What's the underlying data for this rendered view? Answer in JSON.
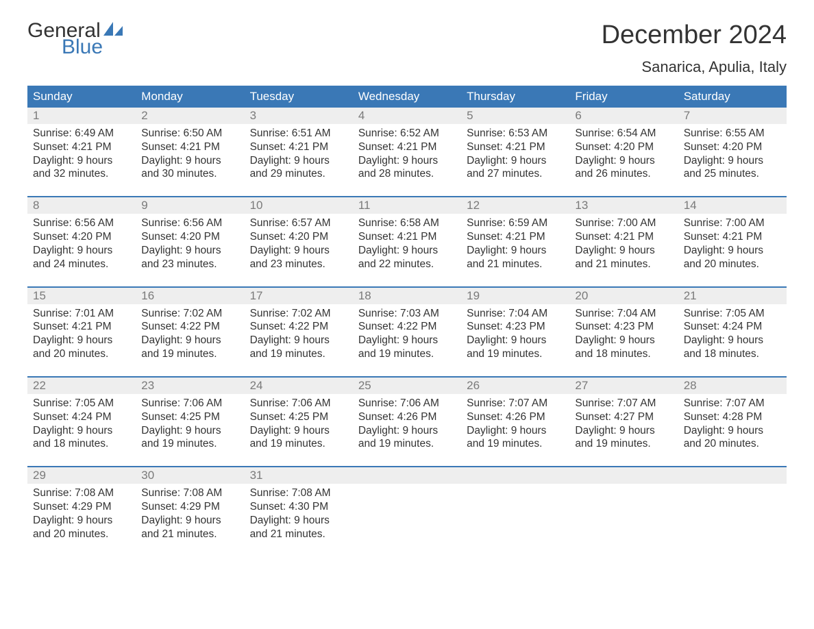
{
  "logo": {
    "general": "General",
    "blue": "Blue",
    "sail_color": "#3a78b6"
  },
  "title": "December 2024",
  "location": "Sanarica, Apulia, Italy",
  "colors": {
    "header_bg": "#3a78b6",
    "header_text": "#ffffff",
    "daynum_bg": "#eeeeee",
    "daynum_text": "#7a7a7a",
    "body_text": "#333333",
    "week_border": "#3a78b6",
    "page_bg": "#ffffff"
  },
  "days_of_week": [
    "Sunday",
    "Monday",
    "Tuesday",
    "Wednesday",
    "Thursday",
    "Friday",
    "Saturday"
  ],
  "labels": {
    "sunrise": "Sunrise",
    "sunset": "Sunset",
    "daylight": "Daylight"
  },
  "weeks": [
    [
      {
        "n": 1,
        "sunrise": "6:49 AM",
        "sunset": "4:21 PM",
        "daylight": "9 hours and 32 minutes."
      },
      {
        "n": 2,
        "sunrise": "6:50 AM",
        "sunset": "4:21 PM",
        "daylight": "9 hours and 30 minutes."
      },
      {
        "n": 3,
        "sunrise": "6:51 AM",
        "sunset": "4:21 PM",
        "daylight": "9 hours and 29 minutes."
      },
      {
        "n": 4,
        "sunrise": "6:52 AM",
        "sunset": "4:21 PM",
        "daylight": "9 hours and 28 minutes."
      },
      {
        "n": 5,
        "sunrise": "6:53 AM",
        "sunset": "4:21 PM",
        "daylight": "9 hours and 27 minutes."
      },
      {
        "n": 6,
        "sunrise": "6:54 AM",
        "sunset": "4:20 PM",
        "daylight": "9 hours and 26 minutes."
      },
      {
        "n": 7,
        "sunrise": "6:55 AM",
        "sunset": "4:20 PM",
        "daylight": "9 hours and 25 minutes."
      }
    ],
    [
      {
        "n": 8,
        "sunrise": "6:56 AM",
        "sunset": "4:20 PM",
        "daylight": "9 hours and 24 minutes."
      },
      {
        "n": 9,
        "sunrise": "6:56 AM",
        "sunset": "4:20 PM",
        "daylight": "9 hours and 23 minutes."
      },
      {
        "n": 10,
        "sunrise": "6:57 AM",
        "sunset": "4:20 PM",
        "daylight": "9 hours and 23 minutes."
      },
      {
        "n": 11,
        "sunrise": "6:58 AM",
        "sunset": "4:21 PM",
        "daylight": "9 hours and 22 minutes."
      },
      {
        "n": 12,
        "sunrise": "6:59 AM",
        "sunset": "4:21 PM",
        "daylight": "9 hours and 21 minutes."
      },
      {
        "n": 13,
        "sunrise": "7:00 AM",
        "sunset": "4:21 PM",
        "daylight": "9 hours and 21 minutes."
      },
      {
        "n": 14,
        "sunrise": "7:00 AM",
        "sunset": "4:21 PM",
        "daylight": "9 hours and 20 minutes."
      }
    ],
    [
      {
        "n": 15,
        "sunrise": "7:01 AM",
        "sunset": "4:21 PM",
        "daylight": "9 hours and 20 minutes."
      },
      {
        "n": 16,
        "sunrise": "7:02 AM",
        "sunset": "4:22 PM",
        "daylight": "9 hours and 19 minutes."
      },
      {
        "n": 17,
        "sunrise": "7:02 AM",
        "sunset": "4:22 PM",
        "daylight": "9 hours and 19 minutes."
      },
      {
        "n": 18,
        "sunrise": "7:03 AM",
        "sunset": "4:22 PM",
        "daylight": "9 hours and 19 minutes."
      },
      {
        "n": 19,
        "sunrise": "7:04 AM",
        "sunset": "4:23 PM",
        "daylight": "9 hours and 19 minutes."
      },
      {
        "n": 20,
        "sunrise": "7:04 AM",
        "sunset": "4:23 PM",
        "daylight": "9 hours and 18 minutes."
      },
      {
        "n": 21,
        "sunrise": "7:05 AM",
        "sunset": "4:24 PM",
        "daylight": "9 hours and 18 minutes."
      }
    ],
    [
      {
        "n": 22,
        "sunrise": "7:05 AM",
        "sunset": "4:24 PM",
        "daylight": "9 hours and 18 minutes."
      },
      {
        "n": 23,
        "sunrise": "7:06 AM",
        "sunset": "4:25 PM",
        "daylight": "9 hours and 19 minutes."
      },
      {
        "n": 24,
        "sunrise": "7:06 AM",
        "sunset": "4:25 PM",
        "daylight": "9 hours and 19 minutes."
      },
      {
        "n": 25,
        "sunrise": "7:06 AM",
        "sunset": "4:26 PM",
        "daylight": "9 hours and 19 minutes."
      },
      {
        "n": 26,
        "sunrise": "7:07 AM",
        "sunset": "4:26 PM",
        "daylight": "9 hours and 19 minutes."
      },
      {
        "n": 27,
        "sunrise": "7:07 AM",
        "sunset": "4:27 PM",
        "daylight": "9 hours and 19 minutes."
      },
      {
        "n": 28,
        "sunrise": "7:07 AM",
        "sunset": "4:28 PM",
        "daylight": "9 hours and 20 minutes."
      }
    ],
    [
      {
        "n": 29,
        "sunrise": "7:08 AM",
        "sunset": "4:29 PM",
        "daylight": "9 hours and 20 minutes."
      },
      {
        "n": 30,
        "sunrise": "7:08 AM",
        "sunset": "4:29 PM",
        "daylight": "9 hours and 21 minutes."
      },
      {
        "n": 31,
        "sunrise": "7:08 AM",
        "sunset": "4:30 PM",
        "daylight": "9 hours and 21 minutes."
      },
      null,
      null,
      null,
      null
    ]
  ]
}
